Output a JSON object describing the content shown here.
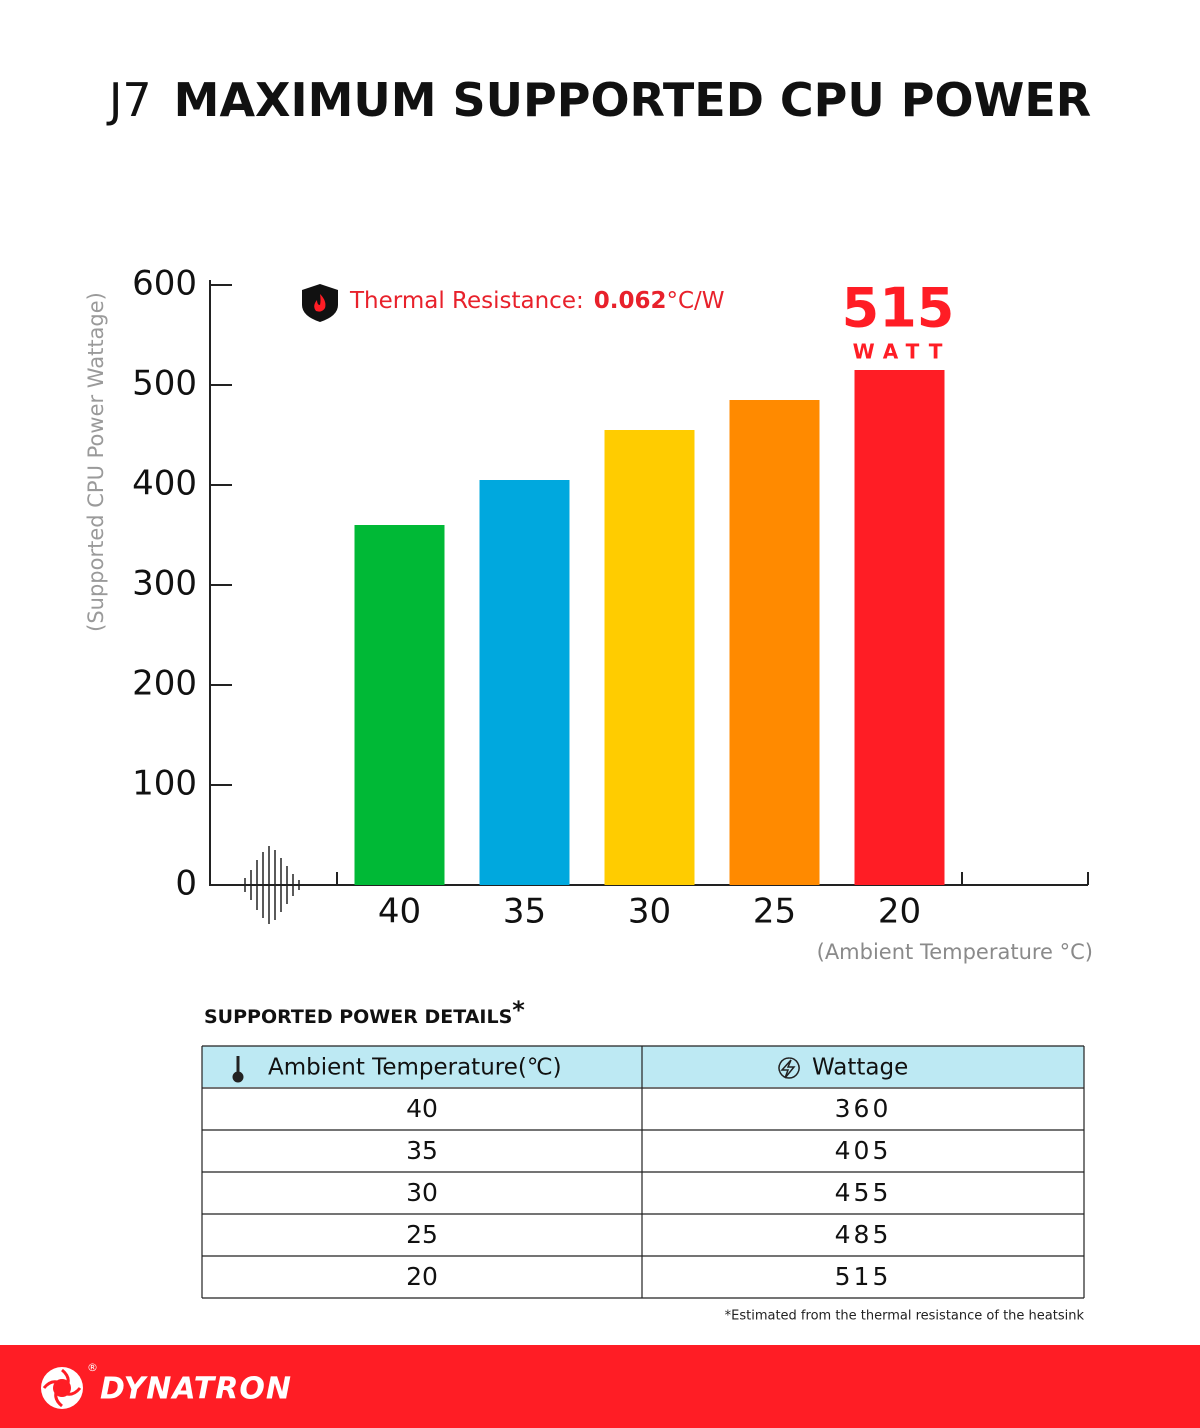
{
  "chart_data": {
    "type": "bar",
    "model": "J7",
    "title": "MAXIMUM SUPPORTED CPU POWER",
    "y_label": "(Supported CPU Power Wattage)",
    "x_label": "(Ambient Temperature °C)",
    "annotation": {
      "label": "Thermal Resistance:",
      "value": "0.062",
      "unit": "°C/W"
    },
    "highlight_unit": "WATT",
    "categories": [
      "40",
      "35",
      "30",
      "25",
      "20"
    ],
    "values": [
      360,
      405,
      455,
      485,
      515
    ],
    "colors": [
      "#00b936",
      "#00a8de",
      "#ffcc00",
      "#ff8a00",
      "#ff1d25"
    ],
    "ylim": [
      0,
      600
    ],
    "yticks": [
      0,
      100,
      200,
      300,
      400,
      500,
      600
    ],
    "grid": false
  },
  "table": {
    "title": "SUPPORTED POWER DETAILS",
    "title_mark": "*",
    "headers": [
      "Ambient Temperature(℃)",
      "Wattage"
    ],
    "rows": [
      [
        40,
        360
      ],
      [
        35,
        405
      ],
      [
        30,
        455
      ],
      [
        25,
        485
      ],
      [
        20,
        515
      ]
    ],
    "footnote": "*Estimated from the thermal resistance of the heatsink"
  },
  "footer": {
    "brand": "DYNATRON",
    "mark": "®"
  }
}
